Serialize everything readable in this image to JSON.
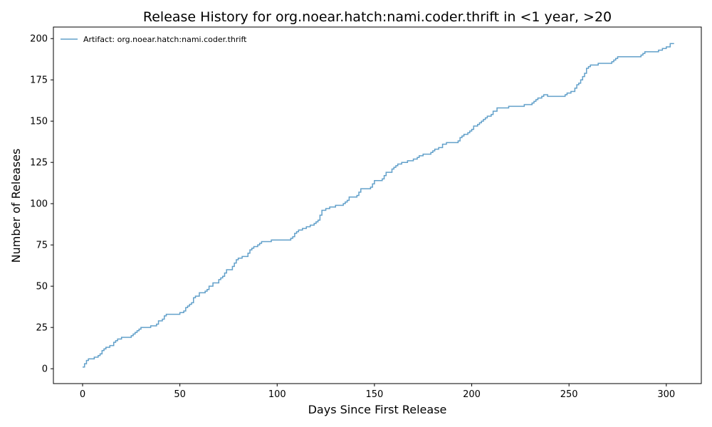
{
  "chart_data": {
    "type": "line",
    "title": "Release History for org.noear.hatch:nami.coder.thrift in <1 year, >20",
    "xlabel": "Days Since First Release",
    "ylabel": "Number of Releases",
    "xlim": [
      -15,
      318
    ],
    "ylim": [
      -9,
      207
    ],
    "xticks": [
      0,
      50,
      100,
      150,
      200,
      250,
      300
    ],
    "yticks": [
      0,
      25,
      50,
      75,
      100,
      125,
      150,
      175,
      200
    ],
    "grid": false,
    "legend_position": "top-left",
    "step": true,
    "series": [
      {
        "name": "Artifact: org.noear.hatch:nami.coder.thrift",
        "color": "#1f77b4",
        "x": [
          0,
          1,
          2,
          3,
          4,
          6,
          8,
          9,
          10,
          11,
          12,
          14,
          16,
          17,
          18,
          20,
          25,
          26,
          27,
          28,
          29,
          30,
          35,
          38,
          39,
          41,
          42,
          43,
          50,
          52,
          53,
          54,
          55,
          56,
          57,
          58,
          60,
          63,
          64,
          65,
          67,
          70,
          71,
          72,
          73,
          74,
          77,
          78,
          79,
          80,
          82,
          85,
          86,
          87,
          88,
          90,
          91,
          92,
          97,
          107,
          108,
          109,
          110,
          111,
          113,
          115,
          117,
          119,
          120,
          121,
          122,
          123,
          125,
          127,
          130,
          134,
          135,
          136,
          137,
          141,
          142,
          143,
          148,
          149,
          150,
          154,
          155,
          156,
          159,
          160,
          161,
          162,
          164,
          167,
          170,
          172,
          173,
          175,
          179,
          180,
          181,
          183,
          185,
          187,
          189,
          193,
          194,
          195,
          196,
          198,
          199,
          200,
          201,
          203,
          204,
          205,
          206,
          207,
          208,
          210,
          211,
          213,
          219,
          227,
          231,
          232,
          233,
          234,
          236,
          237,
          238,
          239,
          248,
          249,
          250,
          251,
          253,
          254,
          255,
          256,
          257,
          258,
          259,
          260,
          261,
          262,
          265,
          267,
          272,
          273,
          274,
          275,
          276,
          277,
          287,
          288,
          289,
          290,
          292,
          296,
          298,
          300,
          302,
          304
        ],
        "y": [
          1,
          3,
          5,
          6,
          6,
          7,
          8,
          9,
          11,
          12,
          13,
          14,
          16,
          17,
          18,
          19,
          20,
          21,
          22,
          23,
          24,
          25,
          26,
          27,
          29,
          30,
          32,
          33,
          34,
          35,
          37,
          38,
          39,
          40,
          43,
          44,
          46,
          47,
          48,
          50,
          52,
          54,
          55,
          56,
          58,
          60,
          62,
          64,
          66,
          67,
          68,
          70,
          72,
          73,
          74,
          75,
          76,
          77,
          78,
          79,
          80,
          82,
          83,
          84,
          85,
          86,
          87,
          88,
          89,
          90,
          93,
          96,
          97,
          98,
          99,
          100,
          101,
          102,
          104,
          105,
          107,
          109,
          110,
          112,
          114,
          115,
          117,
          119,
          121,
          122,
          123,
          124,
          125,
          126,
          127,
          128,
          129,
          130,
          131,
          132,
          133,
          134,
          136,
          137,
          137,
          138,
          140,
          141,
          142,
          143,
          144,
          145,
          147,
          148,
          149,
          150,
          151,
          152,
          153,
          154,
          156,
          158,
          159,
          160,
          161,
          162,
          163,
          164,
          165,
          166,
          166,
          165,
          166,
          167,
          167,
          168,
          170,
          172,
          173,
          175,
          177,
          179,
          182,
          183,
          184,
          184,
          185,
          185,
          186,
          187,
          188,
          189,
          189,
          189,
          190,
          191,
          192,
          192,
          192,
          193,
          194,
          195,
          197,
          197
        ]
      }
    ]
  }
}
